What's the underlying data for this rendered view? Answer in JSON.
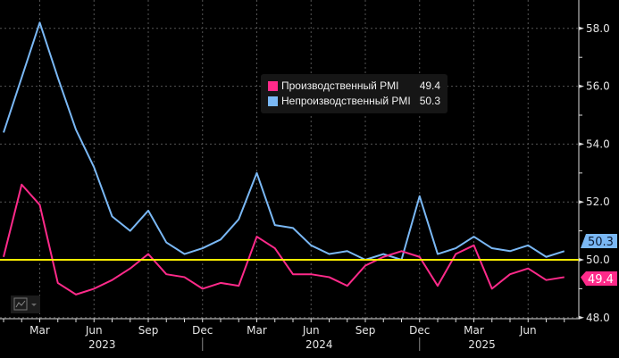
{
  "chart_data": {
    "type": "line",
    "x": [
      "2023-01",
      "2023-02",
      "2023-03",
      "2023-04",
      "2023-05",
      "2023-06",
      "2023-07",
      "2023-08",
      "2023-09",
      "2023-10",
      "2023-11",
      "2023-12",
      "2024-01",
      "2024-02",
      "2024-03",
      "2024-04",
      "2024-05",
      "2024-06",
      "2024-07",
      "2024-08",
      "2024-09",
      "2024-10",
      "2024-11",
      "2024-12",
      "2025-01",
      "2025-02",
      "2025-03",
      "2025-04",
      "2025-05",
      "2025-06",
      "2025-07",
      "2025-08"
    ],
    "series": [
      {
        "name": "Производственный PMI",
        "color": "#ff2a8a",
        "last_value": "49.4",
        "values": [
          50.1,
          52.6,
          51.9,
          49.2,
          48.8,
          49.0,
          49.3,
          49.7,
          50.2,
          49.5,
          49.4,
          49.0,
          49.2,
          49.1,
          50.8,
          50.4,
          49.5,
          49.5,
          49.4,
          49.1,
          49.8,
          50.1,
          50.3,
          50.1,
          49.1,
          50.2,
          50.5,
          49.0,
          49.5,
          49.7,
          49.3,
          49.4
        ]
      },
      {
        "name": "Непроизводственный PMI",
        "color": "#7ab8f5",
        "last_value": "50.3",
        "values": [
          54.4,
          56.3,
          58.2,
          56.3,
          54.5,
          53.2,
          51.5,
          51.0,
          51.7,
          50.6,
          50.2,
          50.4,
          50.7,
          51.4,
          53.0,
          51.2,
          51.1,
          50.5,
          50.2,
          50.3,
          50.0,
          50.2,
          50.0,
          52.2,
          50.2,
          50.4,
          50.8,
          50.4,
          50.3,
          50.5,
          50.1,
          50.3
        ]
      }
    ],
    "reference_line": {
      "value": 50.0,
      "color": "#ffee00"
    },
    "ylim": [
      47.9,
      59.0
    ],
    "y_ticks": [
      "48.0",
      "50.0",
      "52.0",
      "54.0",
      "56.0",
      "58.0"
    ],
    "x_tick_labels": [
      {
        "month": "2023-03",
        "label": "Mar"
      },
      {
        "month": "2023-06",
        "label": "Jun"
      },
      {
        "month": "2023-09",
        "label": "Sep"
      },
      {
        "month": "2023-12",
        "label": "Dec"
      },
      {
        "month": "2024-03",
        "label": "Mar"
      },
      {
        "month": "2024-06",
        "label": "Jun"
      },
      {
        "month": "2024-09",
        "label": "Sep"
      },
      {
        "month": "2024-12",
        "label": "Dec"
      },
      {
        "month": "2025-03",
        "label": "Mar"
      },
      {
        "month": "2025-06",
        "label": "Jun"
      }
    ],
    "year_labels": [
      {
        "month": "2023-06",
        "label": "2023"
      },
      {
        "month": "2024-06",
        "label": "2024"
      },
      {
        "month": "2025-03",
        "label": "2025"
      }
    ],
    "grid": true,
    "y_axis_side": "right",
    "legend_placement": "top-center",
    "background": "#000000"
  },
  "widget": {
    "icon": "line-chart-icon"
  }
}
